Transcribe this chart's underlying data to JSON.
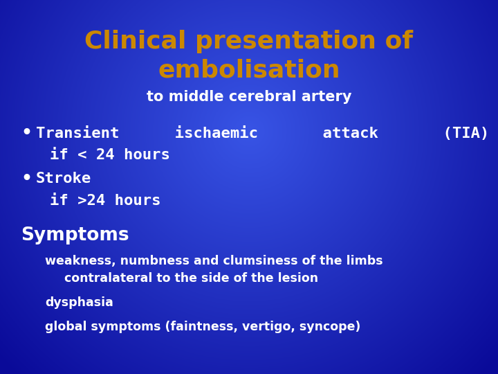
{
  "title_line1": "Clinical presentation of",
  "title_line2": "embolisation",
  "subtitle": "to middle cerebral artery",
  "bullet1_line1": "Transient      ischaemic       attack       (TIA)",
  "bullet1_line2": "if < 24 hours",
  "bullet2_line1": "Stroke",
  "bullet2_line2": "if >24 hours",
  "section_header": "Symptoms",
  "symptom1_line1": "weakness, numbness and clumsiness of the limbs",
  "symptom1_line2": "   contralateral to the side of the lesion",
  "symptom2": "dysphasia",
  "symptom3": "global symptoms (faintness, vertigo, syncope)",
  "bg_dark": "#0000aa",
  "bg_light_center": "#2244dd",
  "title_color": "#cc8800",
  "white": "#ffffff",
  "title_fontsize": 26,
  "subtitle_fontsize": 15,
  "bullet_fontsize": 16,
  "section_fontsize": 19,
  "symptom_fontsize": 12.5
}
